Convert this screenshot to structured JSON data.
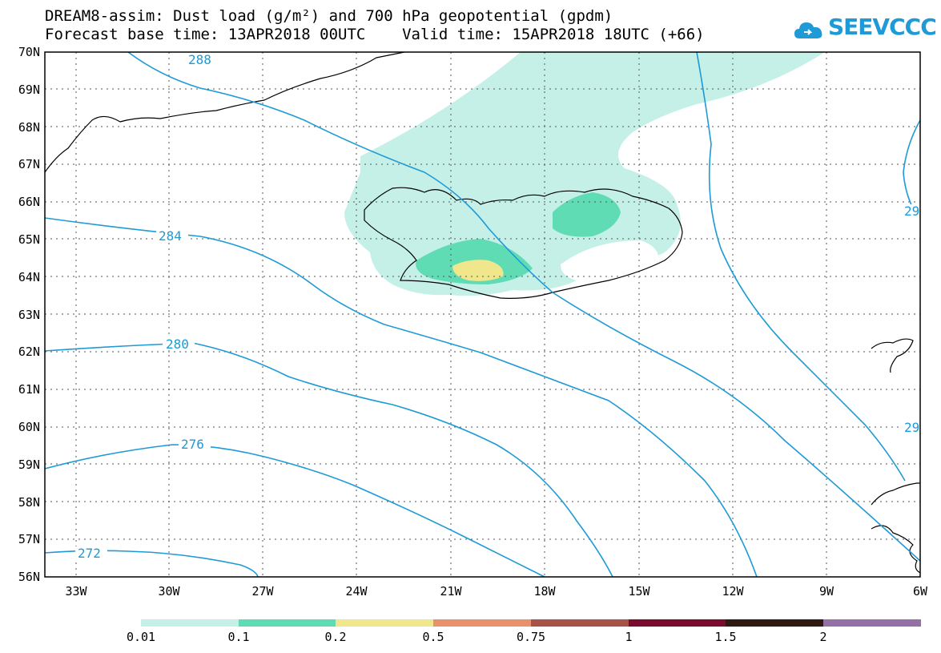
{
  "title": {
    "line1": "DREAM8-assim: Dust load (g/m²) and 700 hPa geopotential (gpdm)",
    "line2": "Forecast base time: 13APR2018 00UTC    Valid time: 15APR2018 18UTC (+66)"
  },
  "logo": {
    "text": "SEEVCCC",
    "icon": "cloud-icon",
    "color": "#1e9ad6"
  },
  "map": {
    "lat_labels": [
      "70N",
      "69N",
      "68N",
      "67N",
      "66N",
      "65N",
      "64N",
      "63N",
      "62N",
      "61N",
      "60N",
      "59N",
      "58N",
      "57N",
      "56N"
    ],
    "lon_labels": [
      "33W",
      "30W",
      "27W",
      "24W",
      "21W",
      "18W",
      "15W",
      "12W",
      "9W",
      "6W"
    ],
    "contour_color": "#1e9ad6",
    "contour_labels": [
      "288",
      "284",
      "280",
      "276",
      "272",
      "29",
      "29"
    ]
  },
  "colorbar": {
    "colors": [
      "#c4f0e8",
      "#5fdcb4",
      "#f0e68c",
      "#e8916b",
      "#a8524a",
      "#7a0a2e",
      "#2e1a12",
      "#9470a6"
    ],
    "labels": [
      "0.01",
      "0.1",
      "0.2",
      "0.5",
      "0.75",
      "1",
      "1.5",
      "2"
    ]
  }
}
